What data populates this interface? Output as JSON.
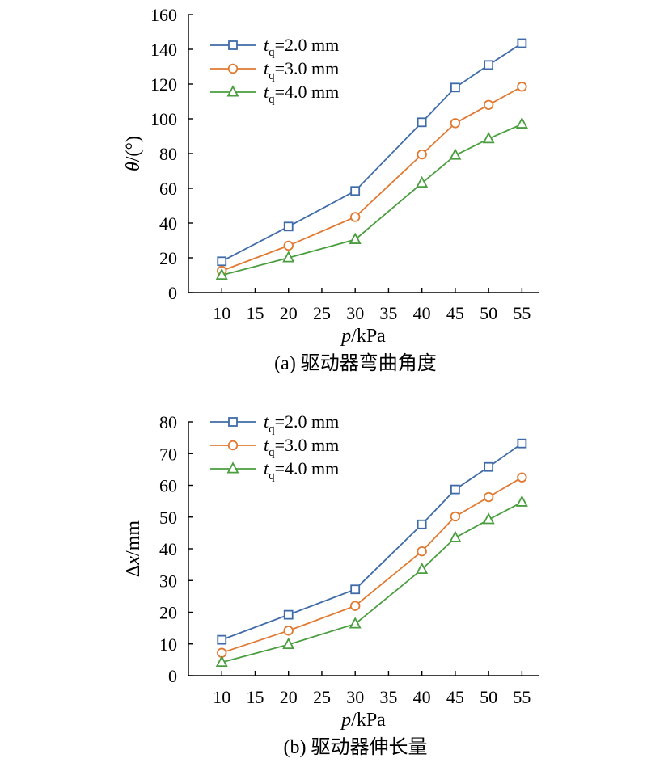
{
  "chart_data": [
    {
      "type": "line",
      "caption": "(a) 驱动器弯曲角度",
      "xlabel_var": "p",
      "xlabel_unit": "/kPa",
      "ylabel_var": "θ",
      "ylabel_unit": "/(°)",
      "x": [
        10,
        20,
        30,
        40,
        45,
        50,
        55
      ],
      "xlim": [
        5,
        57.5
      ],
      "ylim": [
        0,
        160
      ],
      "xticks": [
        10,
        15,
        20,
        25,
        30,
        35,
        40,
        45,
        50,
        55
      ],
      "yticks": [
        0,
        20,
        40,
        60,
        80,
        100,
        120,
        140,
        160
      ],
      "legend_position": "top-left",
      "series": [
        {
          "name_var": "t",
          "name_sub": "q",
          "name_rest": "=2.0 mm",
          "marker": "square",
          "color": "#3f6ca8",
          "values": [
            18,
            38,
            58.5,
            98,
            118,
            131,
            143.5
          ]
        },
        {
          "name_var": "t",
          "name_sub": "q",
          "name_rest": "=3.0 mm",
          "marker": "circle",
          "color": "#e07a32",
          "values": [
            12.5,
            27,
            43.5,
            79.5,
            97.5,
            108,
            118.5
          ]
        },
        {
          "name_var": "t",
          "name_sub": "q",
          "name_rest": "=4.0 mm",
          "marker": "triangle",
          "color": "#4a9e3f",
          "values": [
            10,
            20,
            30.5,
            63,
            79,
            88.5,
            97
          ]
        }
      ]
    },
    {
      "type": "line",
      "caption": "(b) 驱动器伸长量",
      "xlabel_var": "p",
      "xlabel_unit": "/kPa",
      "ylabel_var": "Δx",
      "ylabel_unit": "/mm",
      "x": [
        10,
        20,
        30,
        40,
        45,
        50,
        55
      ],
      "xlim": [
        5,
        57.5
      ],
      "ylim": [
        0,
        80
      ],
      "xticks": [
        10,
        15,
        20,
        25,
        30,
        35,
        40,
        45,
        50,
        55
      ],
      "yticks": [
        0,
        10,
        20,
        30,
        40,
        50,
        60,
        70,
        80
      ],
      "legend_position": "top-left",
      "series": [
        {
          "name_var": "t",
          "name_sub": "q",
          "name_rest": "=2.0 mm",
          "marker": "square",
          "color": "#3f6ca8",
          "values": [
            11.3,
            19.2,
            27.2,
            47.7,
            58.7,
            65.8,
            73.2
          ]
        },
        {
          "name_var": "t",
          "name_sub": "q",
          "name_rest": "=3.0 mm",
          "marker": "circle",
          "color": "#e07a32",
          "values": [
            7.2,
            14.2,
            22,
            39.2,
            50.2,
            56.3,
            62.5
          ]
        },
        {
          "name_var": "t",
          "name_sub": "q",
          "name_rest": "=4.0 mm",
          "marker": "triangle",
          "color": "#4a9e3f",
          "values": [
            4.2,
            9.8,
            16.3,
            33.5,
            43.5,
            49.2,
            54.7
          ]
        }
      ]
    }
  ]
}
